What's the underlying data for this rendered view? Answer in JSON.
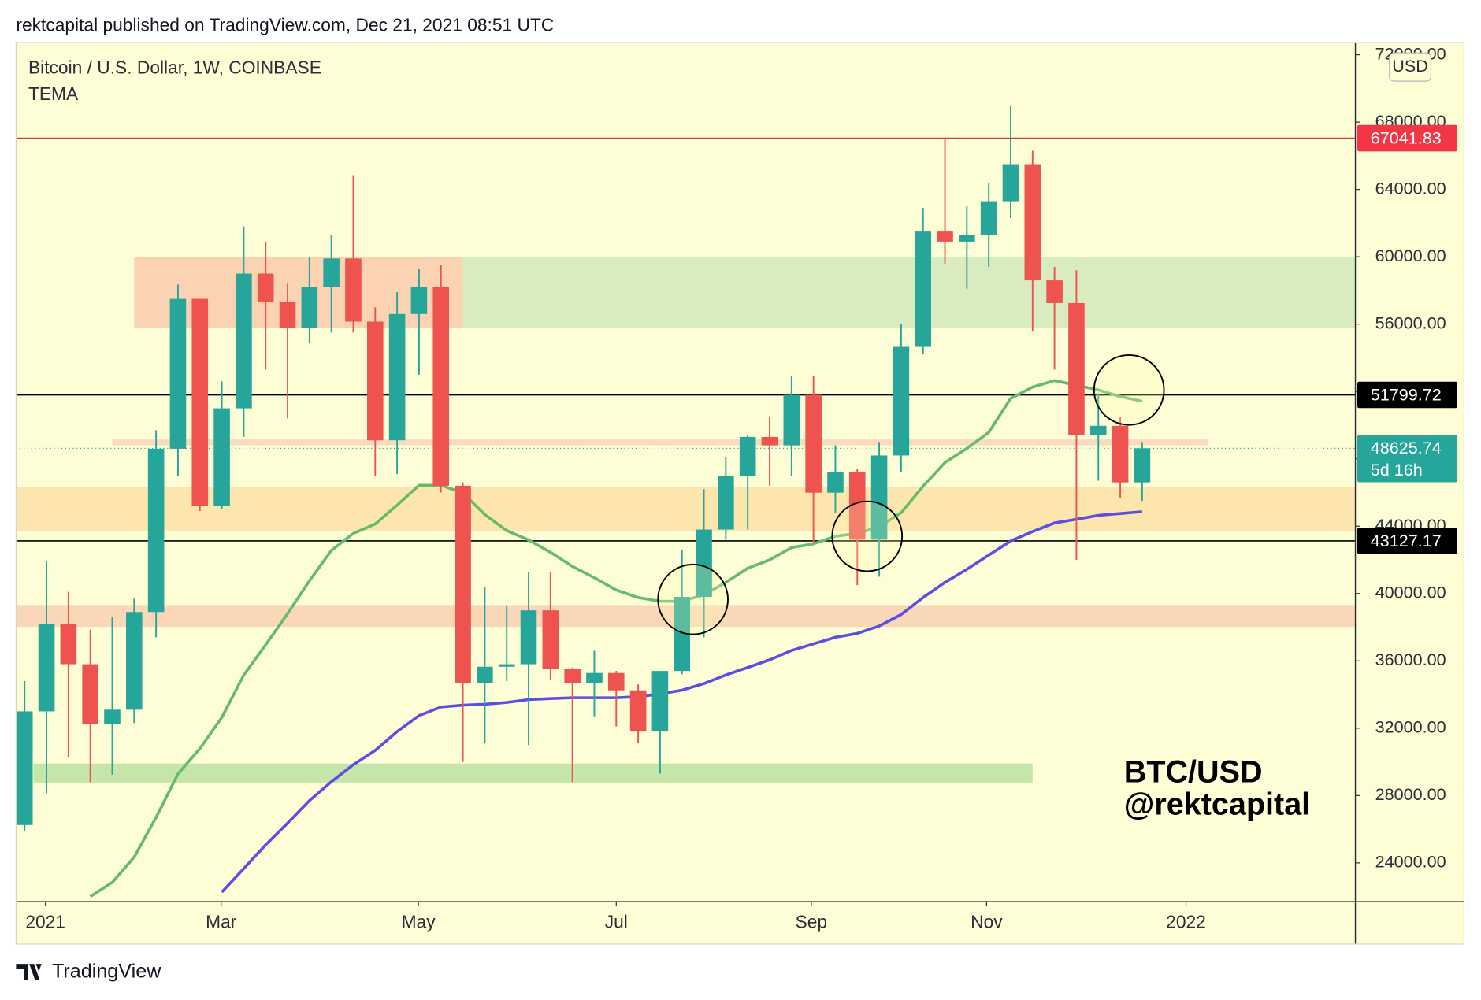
{
  "header": "rektcapital published on TradingView.com, Dec 21, 2021 08:51 UTC",
  "brand": "TradingView",
  "chart_data": {
    "type": "candlestick",
    "title": "Bitcoin / U.S. Dollar, 1W, COINBASE",
    "indicator": "TEMA",
    "currency": "USD",
    "watermark": [
      "BTC/USD",
      "@rektcapital"
    ],
    "up_color": "#26a69a",
    "down_color": "#ef5350",
    "open": [
      26249,
      33000,
      38180,
      35800,
      32260,
      33100,
      38900,
      48600,
      57500,
      45200,
      51000,
      59000,
      57330,
      55800,
      58200,
      59900,
      56150,
      49100,
      56600,
      58200,
      46400,
      34700,
      35650,
      35800,
      39000,
      35500,
      34700,
      35280,
      34250,
      31800,
      35400,
      39800,
      43800,
      47000,
      49300,
      48800,
      51800,
      45990,
      47220,
      43200,
      48200,
      54650,
      61500,
      60900,
      61300,
      63300,
      65500,
      58600,
      57250,
      49400,
      49960,
      46600
    ],
    "high": [
      34800,
      41950,
      40100,
      37850,
      38600,
      39700,
      49700,
      58350,
      57500,
      52600,
      61800,
      60900,
      58400,
      60000,
      61300,
      64850,
      57000,
      57900,
      59300,
      59500,
      46600,
      40400,
      39300,
      41300,
      41300,
      35600,
      36600,
      35400,
      34600,
      35400,
      42600,
      46200,
      48100,
      49400,
      50500,
      52900,
      52900,
      48800,
      47400,
      49000,
      56000,
      62900,
      67000,
      63000,
      64400,
      69000,
      66300,
      59400,
      59200,
      51900,
      50500,
      49000
    ],
    "low": [
      25880,
      28130,
      30300,
      28800,
      29240,
      32300,
      37400,
      47000,
      44900,
      45000,
      49300,
      53300,
      50400,
      54900,
      55500,
      55500,
      47000,
      47100,
      53000,
      46000,
      30000,
      31100,
      34800,
      31000,
      34900,
      28800,
      32700,
      32100,
      31100,
      29300,
      35200,
      37400,
      43200,
      43800,
      46400,
      47000,
      43000,
      44800,
      40500,
      41000,
      47200,
      54200,
      59600,
      58100,
      59400,
      62300,
      55600,
      53300,
      42000,
      46700,
      45700,
      45500
    ],
    "close": [
      33000,
      38180,
      35800,
      32260,
      33100,
      38900,
      48600,
      57500,
      45200,
      51000,
      59000,
      57330,
      55800,
      58200,
      59900,
      56150,
      49100,
      56600,
      58200,
      46400,
      34700,
      35650,
      35800,
      39000,
      35500,
      34700,
      35280,
      34250,
      31800,
      35400,
      39800,
      43800,
      47000,
      49300,
      48800,
      51800,
      45990,
      47220,
      43200,
      48200,
      54650,
      61500,
      60900,
      61300,
      63300,
      65500,
      58600,
      57250,
      49400,
      49960,
      46600,
      48625.74
    ],
    "indicator_lines": [
      {
        "color": "#66bb6a",
        "values": [
          null,
          null,
          null,
          22000,
          22840,
          24340,
          26700,
          29290,
          30790,
          32640,
          35150,
          36950,
          38800,
          40760,
          42560,
          43570,
          44130,
          45250,
          46430,
          46430,
          45980,
          44690,
          43740,
          43180,
          42450,
          41610,
          40940,
          40210,
          39760,
          39540,
          39540,
          39930,
          40660,
          41500,
          42000,
          42730,
          42950,
          43400,
          43570,
          43960,
          44800,
          46370,
          47780,
          48620,
          49570,
          51590,
          52260,
          52650,
          52370,
          52090,
          51700,
          51420
        ]
      },
      {
        "color": "#5b4fe0",
        "values": [
          null,
          null,
          null,
          null,
          null,
          null,
          null,
          null,
          null,
          22260,
          23660,
          25070,
          26360,
          27700,
          28820,
          29830,
          30680,
          31800,
          32750,
          33260,
          33370,
          33420,
          33530,
          33700,
          33760,
          33810,
          33810,
          33810,
          33870,
          34040,
          34260,
          34650,
          35160,
          35610,
          36060,
          36620,
          37010,
          37400,
          37630,
          38070,
          38750,
          39760,
          40660,
          41440,
          42280,
          43120,
          43680,
          44190,
          44410,
          44640,
          44750,
          44860
        ]
      }
    ],
    "zones": [
      {
        "x": [
          5,
          20
        ],
        "y": [
          55750,
          60000
        ],
        "color": "#fbd3b2"
      },
      {
        "x": [
          20,
          60.73
        ],
        "y": [
          55750,
          60000
        ],
        "color": "#d9ecc0"
      },
      {
        "x": [
          4,
          54
        ],
        "y": [
          48800,
          49150
        ],
        "color": "#f9dcc0"
      },
      {
        "x": [
          -0.39,
          60.73
        ],
        "y": [
          43690,
          46330
        ],
        "color": "#fde6ad"
      },
      {
        "x": [
          -0.39,
          60.73
        ],
        "y": [
          38020,
          39310
        ],
        "color": "#fad7b6"
      },
      {
        "x": [
          0.4,
          46
        ],
        "y": [
          28770,
          29900
        ],
        "color": "#c6e5a8"
      }
    ],
    "levels": [
      {
        "value": 67041.83,
        "color": "#e53935",
        "label_color": "#f23645"
      },
      {
        "value": 51799.72,
        "color": "#000000",
        "label_color": "#000000"
      },
      {
        "value": 43127.17,
        "color": "#000000",
        "label_color": "#000000"
      }
    ],
    "last": {
      "value": 48625.74,
      "countdown": "5d 16h",
      "color": "#26a69a"
    },
    "circles": [
      {
        "x": 30.5,
        "y": 39650
      },
      {
        "x": 38.45,
        "y": 43400
      },
      {
        "x": 50.4,
        "y": 52090
      }
    ],
    "xlim": [
      -0.39,
      60.73
    ],
    "xticks": [
      {
        "value": 0.95,
        "label": "2021"
      },
      {
        "value": 8.97,
        "label": "Mar"
      },
      {
        "value": 17.97,
        "label": "May"
      },
      {
        "value": 27.0,
        "label": "Jul"
      },
      {
        "value": 35.9,
        "label": "Sep"
      },
      {
        "value": 43.9,
        "label": "Nov"
      },
      {
        "value": 53.0,
        "label": "2022"
      }
    ],
    "ylim": [
      21700,
      72730
    ],
    "yticks": [
      {
        "value": 24000,
        "label": "24000.00"
      },
      {
        "value": 28000,
        "label": "28000.00"
      },
      {
        "value": 32000,
        "label": "32000.00"
      },
      {
        "value": 36000,
        "label": "36000.00"
      },
      {
        "value": 40000,
        "label": "40000.00"
      },
      {
        "value": 44000,
        "label": "44000.00"
      },
      {
        "value": 48000,
        "label": "48000.00"
      },
      {
        "value": 52000,
        "label": "52000.00"
      },
      {
        "value": 56000,
        "label": "56000.00"
      },
      {
        "value": 60000,
        "label": "60000.00"
      },
      {
        "value": 64000,
        "label": "64000.00"
      },
      {
        "value": 68000,
        "label": "68000.00"
      },
      {
        "value": 72000,
        "label": "72000.00"
      }
    ]
  }
}
